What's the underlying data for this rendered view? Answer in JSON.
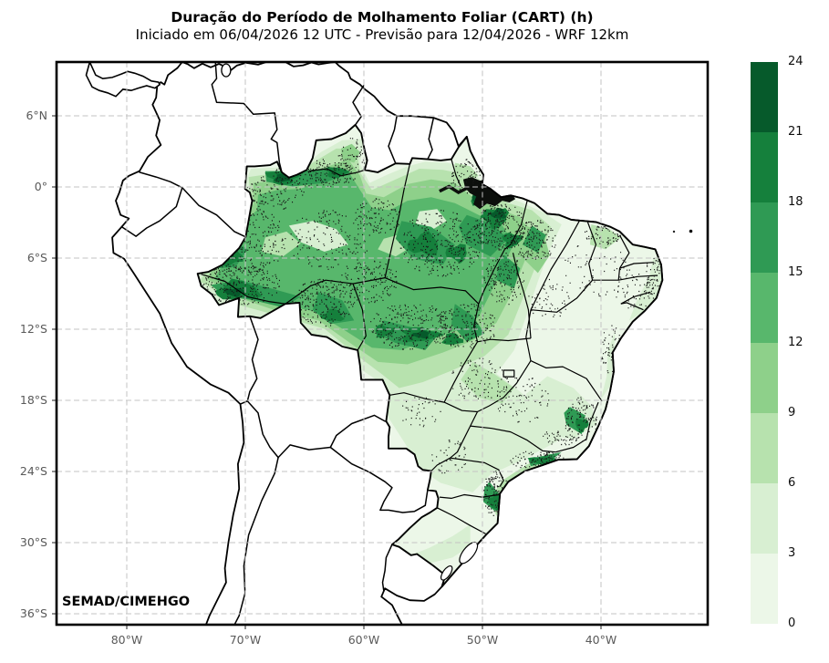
{
  "title": "Duração do Período de Molhamento Foliar (CART) (h)",
  "subtitle": "Iniciado em 06/04/2026 12 UTC - Previsão para 12/04/2026 - WRF 12km",
  "credit": "SEMAD/CIMEHGO",
  "axes": {
    "lat_labels": [
      "6°N",
      "0°",
      "6°S",
      "12°S",
      "18°S",
      "24°S",
      "30°S",
      "36°S"
    ],
    "lon_labels": [
      "80°W",
      "70°W",
      "60°W",
      "50°W",
      "40°W"
    ]
  },
  "colorbar": {
    "ticks": [
      "24",
      "21",
      "18",
      "15",
      "12",
      "9",
      "6",
      "3",
      "0"
    ],
    "levels": [
      0,
      3,
      6,
      9,
      12,
      15,
      18,
      21,
      24
    ],
    "colors": [
      "#ecf7e8",
      "#d8efd2",
      "#b7e2ae",
      "#8ed08a",
      "#58b76c",
      "#2f9a54",
      "#15803c",
      "#065a2b"
    ],
    "units": "h"
  }
}
